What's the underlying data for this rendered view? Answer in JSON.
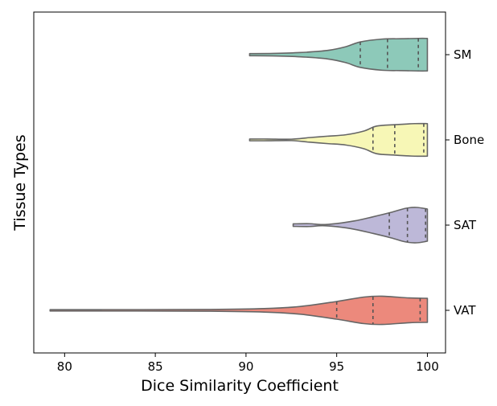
{
  "chart_data": {
    "type": "violin",
    "orientation": "horizontal",
    "xlabel": "Dice Similarity Coefficient",
    "ylabel": "Tissue Types",
    "xlim": [
      78.3,
      101.0
    ],
    "xticks": [
      80,
      85,
      90,
      95,
      100
    ],
    "ytick_position": "right",
    "grid": false,
    "legend": "none",
    "inner": "quartile",
    "series": [
      {
        "name": "SM",
        "color": "#8dc9b9",
        "min": 90.2,
        "q1": 96.3,
        "median": 97.8,
        "q3": 99.5,
        "max": 100.0,
        "profile": [
          [
            90.2,
            0.06
          ],
          [
            91.5,
            0.07
          ],
          [
            93.0,
            0.12
          ],
          [
            94.5,
            0.24
          ],
          [
            95.5,
            0.45
          ],
          [
            96.3,
            0.72
          ],
          [
            97.5,
            0.88
          ],
          [
            98.5,
            0.9
          ],
          [
            99.5,
            0.92
          ],
          [
            100.0,
            0.92
          ]
        ]
      },
      {
        "name": "Bone",
        "color": "#f7f7b6",
        "min": 90.2,
        "q1": 97.0,
        "median": 98.2,
        "q3": 99.8,
        "max": 100.0,
        "profile": [
          [
            90.2,
            0.05
          ],
          [
            91.2,
            0.05
          ],
          [
            92.5,
            0.04
          ],
          [
            93.5,
            0.13
          ],
          [
            94.5,
            0.21
          ],
          [
            95.5,
            0.29
          ],
          [
            96.5,
            0.5
          ],
          [
            97.2,
            0.78
          ],
          [
            98.2,
            0.86
          ],
          [
            99.3,
            0.92
          ],
          [
            100.0,
            0.92
          ]
        ]
      },
      {
        "name": "SAT",
        "color": "#bdb8d8",
        "min": 92.6,
        "q1": 97.9,
        "median": 98.9,
        "q3": 99.9,
        "max": 100.0,
        "profile": [
          [
            92.6,
            0.07
          ],
          [
            93.5,
            0.08
          ],
          [
            94.2,
            0.03
          ],
          [
            95.0,
            0.09
          ],
          [
            96.0,
            0.24
          ],
          [
            97.0,
            0.47
          ],
          [
            98.0,
            0.72
          ],
          [
            98.8,
            0.95
          ],
          [
            99.4,
            1.0
          ],
          [
            100.0,
            0.91
          ]
        ]
      },
      {
        "name": "VAT",
        "color": "#ec897c",
        "min": 79.2,
        "q1": 95.0,
        "median": 97.0,
        "q3": 99.6,
        "max": 100.0,
        "profile": [
          [
            79.2,
            0.04
          ],
          [
            84.0,
            0.04
          ],
          [
            88.0,
            0.05
          ],
          [
            91.0,
            0.1
          ],
          [
            93.0,
            0.22
          ],
          [
            95.0,
            0.5
          ],
          [
            96.5,
            0.75
          ],
          [
            97.5,
            0.8
          ],
          [
            99.0,
            0.7
          ],
          [
            100.0,
            0.68
          ]
        ]
      }
    ]
  }
}
